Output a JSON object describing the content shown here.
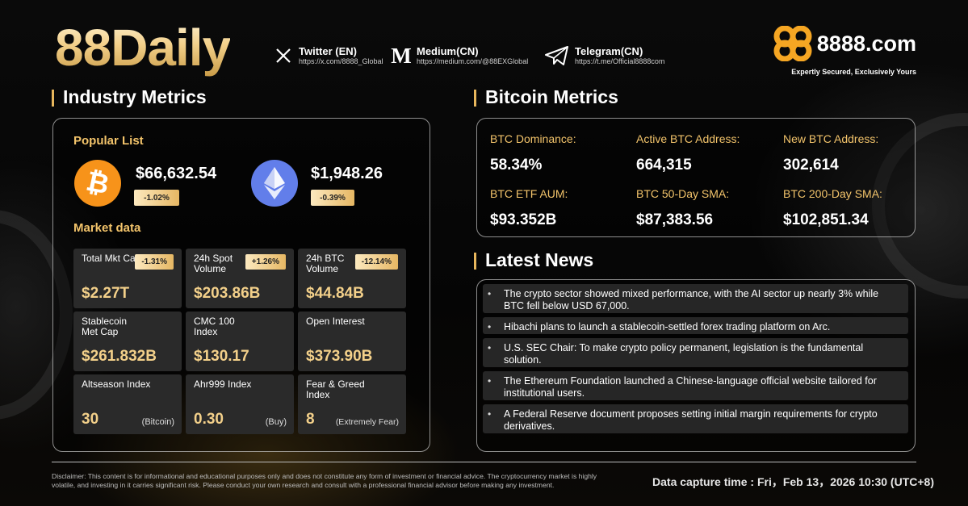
{
  "brand": "88Daily",
  "socials": [
    {
      "name": "Twitter (EN)",
      "url": "https://x.com/8888_Global",
      "icon": "x-logo-icon"
    },
    {
      "name": "Medium(CN)",
      "url": "https://medium.com/@88EXGlobal",
      "icon": "medium-logo-icon"
    },
    {
      "name": "Telegram(CN)",
      "url": "https://t.me/Official8888com",
      "icon": "telegram-logo-icon"
    }
  ],
  "logo": {
    "word": "8888.com",
    "tagline": "Expertly Secured, Exclusively Yours",
    "accent": "#f5a623"
  },
  "industry": {
    "title": "Industry Metrics",
    "popular_title": "Popular List",
    "btc": {
      "price": "$66,632.54",
      "change": "-1.02%",
      "color": "#f7931a",
      "icon": "bitcoin-icon"
    },
    "eth": {
      "price": "$1,948.26",
      "change": "-0.39%",
      "color": "#627eea",
      "icon": "ethereum-icon"
    },
    "market_title": "Market data",
    "cells": [
      {
        "label": "Total Mkt Cap",
        "badge": "-1.31%",
        "value": "$2.27T",
        "note": ""
      },
      {
        "label": "24h Spot Volume",
        "badge": "+1.26%",
        "value": "$203.86B",
        "note": ""
      },
      {
        "label": "24h BTC Volume",
        "badge": "-12.14%",
        "value": "$44.84B",
        "note": ""
      },
      {
        "label": "Stablecoin Met Cap",
        "badge": "",
        "value": "$261.832B",
        "note": ""
      },
      {
        "label": "CMC 100 Index",
        "badge": "",
        "value": "$130.17",
        "note": ""
      },
      {
        "label": "Open Interest",
        "badge": "",
        "value": "$373.90B",
        "note": ""
      },
      {
        "label": "Altseason Index",
        "badge": "",
        "value": "30",
        "note": "(Bitcoin)"
      },
      {
        "label": "Ahr999 Index",
        "badge": "",
        "value": "0.30",
        "note": "(Buy)"
      },
      {
        "label": "Fear & Greed Index",
        "badge": "",
        "value": "8",
        "note": "(Extremely Fear)"
      }
    ]
  },
  "bitcoin": {
    "title": "Bitcoin Metrics",
    "metrics": [
      {
        "label": "BTC Dominance:",
        "value": "58.34%"
      },
      {
        "label": "Active BTC Address:",
        "value": "664,315"
      },
      {
        "label": "New BTC Address:",
        "value": "302,614"
      },
      {
        "label": "BTC ETF AUM:",
        "value": "$93.352B"
      },
      {
        "label": "BTC 50-Day SMA:",
        "value": "$87,383.56"
      },
      {
        "label": "BTC 200-Day SMA:",
        "value": "$102,851.34"
      }
    ]
  },
  "news": {
    "title": "Latest News",
    "items": [
      "The crypto sector showed mixed performance, with the AI sector up nearly 3% while BTC fell below USD 67,000.",
      "Hibachi plans to launch a stablecoin-settled forex trading platform on Arc.",
      "U.S. SEC Chair: To make crypto policy permanent, legislation is the fundamental solution.",
      "The Ethereum Foundation launched a Chinese-language official website tailored for institutional users.",
      "A Federal Reserve document proposes setting initial margin requirements for crypto derivatives."
    ]
  },
  "disclaimer": "Disclaimer: This content is for informational and educational purposes only and does not constitute any form of investment or financial advice. The cryptocurrency market is highly volatile, and investing in it carries significant risk. Please conduct your own research and consult with a professional financial advisor before making any investment.",
  "capture_time": "Data capture time : Fri，Feb 13，2026 10:30 (UTC+8)"
}
